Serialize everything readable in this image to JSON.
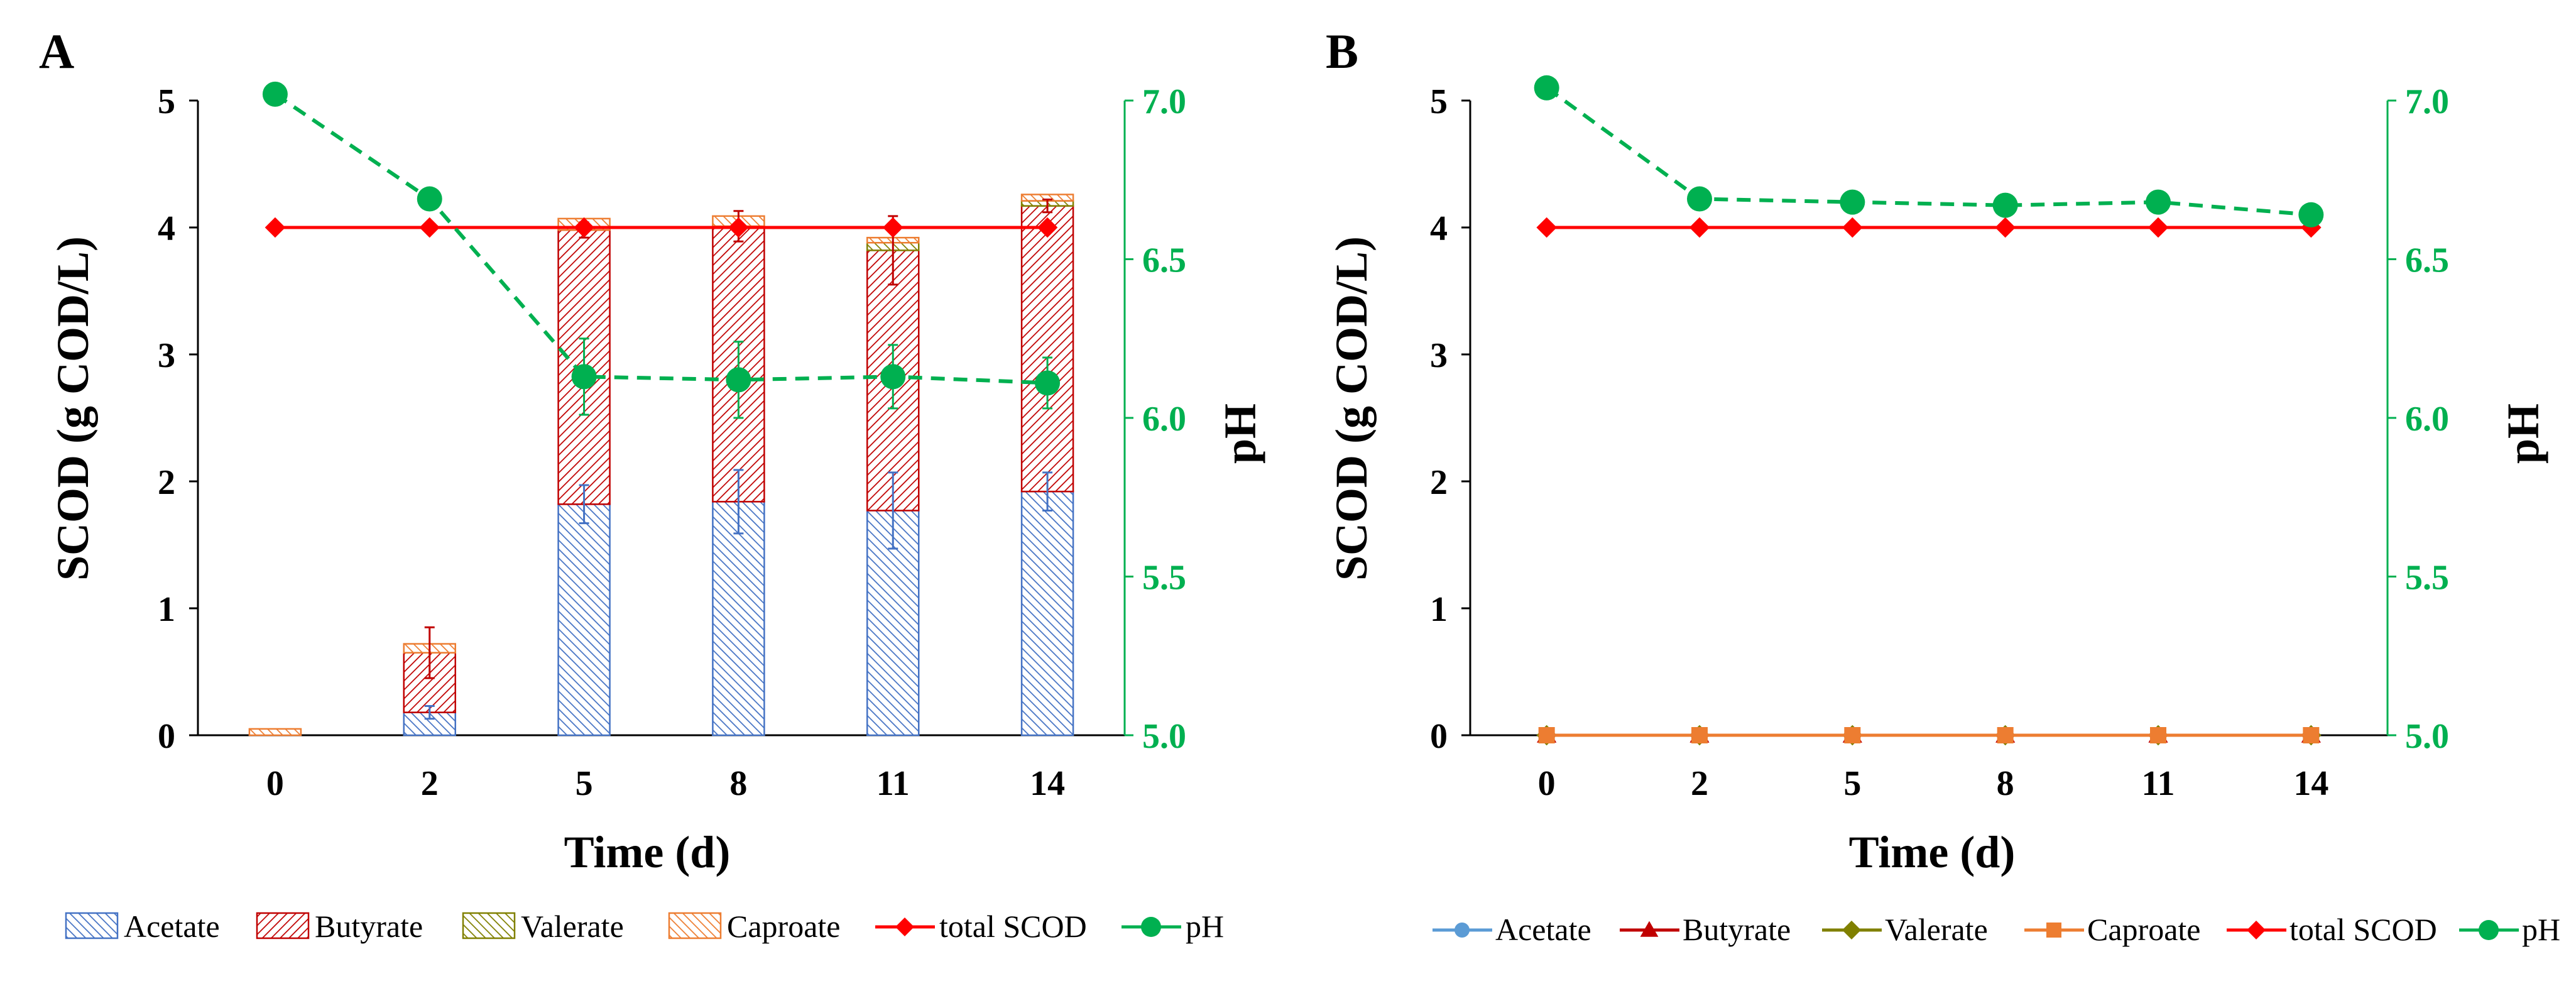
{
  "figure": {
    "colors": {
      "acetate": "#4472C4",
      "acetate_line": "#5B9BD5",
      "butyrate": "#C00000",
      "valerate": "#808000",
      "caproate": "#ED7D31",
      "total": "#FF0000",
      "ph": "#00B050",
      "axis": "#000000"
    }
  },
  "chart_data": [
    {
      "panel": "A",
      "type": "bar",
      "stacked": true,
      "categories": [
        "0",
        "2",
        "5",
        "8",
        "11",
        "14"
      ],
      "xlabel": "Time (d)",
      "ylabel": "SCOD (g COD/L)",
      "ylim": [
        0,
        5
      ],
      "yticks": [
        "0",
        "1",
        "2",
        "3",
        "4",
        "5"
      ],
      "y2label": "pH",
      "y2lim": [
        5.0,
        7.0
      ],
      "y2ticks": [
        "5.0",
        "5.5",
        "6.0",
        "6.5",
        "7.0"
      ],
      "series": [
        {
          "name": "Acetate",
          "kind": "bar",
          "values": [
            0.0,
            0.18,
            1.82,
            1.84,
            1.77,
            1.92
          ],
          "errors": [
            0.0,
            0.05,
            0.15,
            0.25,
            0.3,
            0.15
          ]
        },
        {
          "name": "Butyrate",
          "kind": "bar",
          "values": [
            0.0,
            0.47,
            2.16,
            2.17,
            2.05,
            2.25
          ],
          "errors": [
            0.0,
            0.2,
            0.06,
            0.12,
            0.27,
            0.05
          ]
        },
        {
          "name": "Valerate",
          "kind": "bar",
          "values": [
            0.0,
            0.0,
            0.0,
            0.0,
            0.06,
            0.04
          ],
          "errors": [
            0,
            0,
            0,
            0,
            0,
            0
          ]
        },
        {
          "name": "Caproate",
          "kind": "bar",
          "values": [
            0.05,
            0.07,
            0.09,
            0.08,
            0.04,
            0.05
          ],
          "errors": [
            0,
            0,
            0,
            0,
            0,
            0
          ]
        },
        {
          "name": "total SCOD",
          "kind": "line",
          "values": [
            4.0,
            4.0,
            4.0,
            4.0,
            4.0,
            4.0
          ]
        },
        {
          "name": "pH",
          "kind": "line",
          "axis": "y2",
          "values": [
            7.02,
            6.69,
            6.13,
            6.12,
            6.13,
            6.11
          ],
          "errors": [
            0,
            0,
            0.12,
            0.12,
            0.1,
            0.08
          ]
        }
      ]
    },
    {
      "panel": "B",
      "type": "line",
      "categories": [
        "0",
        "2",
        "5",
        "8",
        "11",
        "14"
      ],
      "xlabel": "Time (d)",
      "ylabel": "SCOD (g COD/L)",
      "ylim": [
        0,
        5
      ],
      "yticks": [
        "0",
        "1",
        "2",
        "3",
        "4",
        "5"
      ],
      "y2label": "pH",
      "y2lim": [
        5.0,
        7.0
      ],
      "y2ticks": [
        "5.0",
        "5.5",
        "6.0",
        "6.5",
        "7.0"
      ],
      "series": [
        {
          "name": "Acetate",
          "kind": "line",
          "marker": "circle",
          "values": [
            0,
            0,
            0,
            0,
            0,
            0
          ]
        },
        {
          "name": "Butyrate",
          "kind": "line",
          "marker": "triangle",
          "values": [
            0,
            0,
            0,
            0,
            0,
            0
          ]
        },
        {
          "name": "Valerate",
          "kind": "line",
          "marker": "diamond",
          "values": [
            0,
            0,
            0,
            0,
            0,
            0
          ]
        },
        {
          "name": "Caproate",
          "kind": "line",
          "marker": "square",
          "values": [
            0,
            0,
            0,
            0,
            0,
            0
          ]
        },
        {
          "name": "total SCOD",
          "kind": "line",
          "marker": "diamond",
          "values": [
            4.0,
            4.0,
            4.0,
            4.0,
            4.0,
            4.0
          ]
        },
        {
          "name": "pH",
          "kind": "line",
          "axis": "y2",
          "marker": "circle",
          "values": [
            7.04,
            6.69,
            6.68,
            6.67,
            6.68,
            6.64
          ]
        }
      ]
    }
  ]
}
